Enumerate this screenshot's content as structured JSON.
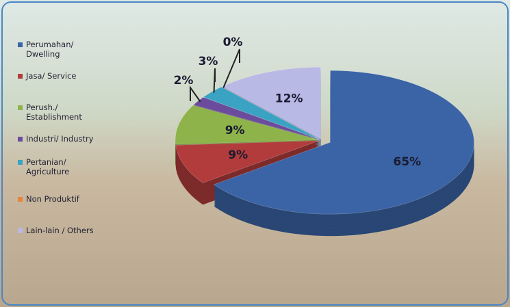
{
  "chart_data": {
    "type": "pie",
    "categories": [
      "Perumahan/ Dwelling",
      "Jasa/ Service",
      "Perush./ Establishment",
      "Industri/ Industry",
      "Pertanian/ Agriculture",
      "Non Produktif",
      "Lain-lain / Others"
    ],
    "values": [
      65,
      9,
      9,
      2,
      3,
      0,
      12
    ],
    "value_labels": [
      "65%",
      "9%",
      "9%",
      "2%",
      "3%",
      "0%",
      "12%"
    ],
    "colors": [
      "#3b64a6",
      "#b23c3c",
      "#8db34a",
      "#6b4b9b",
      "#3aa2c2",
      "#e8843a",
      "#b9b9e6"
    ]
  }
}
